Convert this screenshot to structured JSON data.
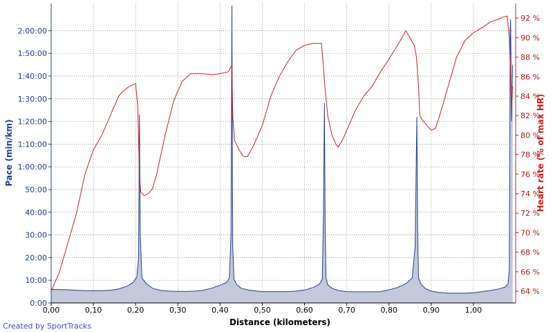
{
  "credit": "Created by SportTracks",
  "colors": {
    "pace": "#23408f",
    "pace_fill": "#c3c9da",
    "heart_rate": "#cc2020",
    "grid": "#7a7a7a",
    "credit": "#3050c0"
  },
  "chart_data": {
    "type": "area",
    "xlabel": "Distance (kilometers)",
    "ylabel_left": "Pace (min/km)",
    "ylabel_right": "Heart rate (% of max HR)",
    "xlim": [
      0,
      1.1
    ],
    "ylim_left_minutes": [
      0,
      132
    ],
    "ylim_right_percent": [
      62.8,
      93.5
    ],
    "grid": true,
    "x_ticks": [
      "0,00",
      "0,10",
      "0,20",
      "0,30",
      "0,40",
      "0,50",
      "0,60",
      "0,70",
      "0,80",
      "0,90",
      "1,00"
    ],
    "left_ticks": [
      "0:00",
      "10:00",
      "20:00",
      "30:00",
      "40:00",
      "50:00",
      "1:00:00",
      "1:10:00",
      "1:20:00",
      "1:30:00",
      "1:40:00",
      "1:50:00",
      "2:00:00"
    ],
    "right_ticks": [
      "64 %",
      "66 %",
      "68 %",
      "70 %",
      "72 %",
      "74 %",
      "76 %",
      "78 %",
      "80 %",
      "82 %",
      "84 %",
      "86 %",
      "88 %",
      "90 %",
      "92 %"
    ],
    "series": [
      {
        "name": "Pace",
        "axis": "left",
        "unit": "min/km",
        "x": [
          0.0,
          0.02,
          0.04,
          0.06,
          0.08,
          0.1,
          0.12,
          0.14,
          0.16,
          0.18,
          0.195,
          0.203,
          0.207,
          0.209,
          0.211,
          0.215,
          0.225,
          0.24,
          0.26,
          0.28,
          0.3,
          0.32,
          0.34,
          0.36,
          0.38,
          0.4,
          0.415,
          0.422,
          0.426,
          0.428,
          0.43,
          0.433,
          0.44,
          0.45,
          0.47,
          0.5,
          0.52,
          0.54,
          0.56,
          0.58,
          0.6,
          0.62,
          0.635,
          0.642,
          0.645,
          0.647,
          0.649,
          0.651,
          0.655,
          0.665,
          0.68,
          0.7,
          0.72,
          0.74,
          0.76,
          0.78,
          0.8,
          0.82,
          0.84,
          0.855,
          0.862,
          0.866,
          0.868,
          0.87,
          0.875,
          0.885,
          0.9,
          0.92,
          0.94,
          0.96,
          0.98,
          1.0,
          1.02,
          1.04,
          1.06,
          1.075,
          1.082,
          1.085,
          1.087,
          1.088,
          1.09,
          1.093
        ],
        "y": [
          6,
          5.9,
          5.8,
          5.6,
          5.4,
          5.4,
          5.4,
          5.6,
          6.2,
          7.4,
          9.2,
          11.5,
          20,
          83,
          30,
          11,
          8.5,
          6.5,
          5.5,
          5.2,
          5.1,
          5.1,
          5.2,
          5.6,
          6.5,
          7.8,
          9,
          11,
          30,
          131,
          25,
          10.5,
          8,
          6.5,
          5.6,
          5,
          5,
          5,
          5,
          5.2,
          5.7,
          6.8,
          8.2,
          10.5,
          40,
          88,
          30,
          11,
          8,
          6.5,
          5.5,
          5,
          4.9,
          4.9,
          4.9,
          5,
          5.8,
          6.8,
          8.5,
          11,
          25,
          82,
          30,
          11,
          8.5,
          6.5,
          5.2,
          4.6,
          4.3,
          4.3,
          4.3,
          4.5,
          5,
          5.5,
          6.2,
          7,
          8.5,
          15,
          120,
          125,
          80,
          105
        ]
      },
      {
        "name": "Heart rate",
        "axis": "right",
        "unit": "% of max HR",
        "x": [
          0.0,
          0.02,
          0.04,
          0.06,
          0.08,
          0.1,
          0.12,
          0.14,
          0.16,
          0.17,
          0.185,
          0.2,
          0.205,
          0.209,
          0.212,
          0.22,
          0.23,
          0.24,
          0.25,
          0.27,
          0.29,
          0.31,
          0.33,
          0.35,
          0.36,
          0.38,
          0.4,
          0.42,
          0.428,
          0.43,
          0.434,
          0.445,
          0.455,
          0.465,
          0.48,
          0.5,
          0.52,
          0.54,
          0.56,
          0.58,
          0.6,
          0.62,
          0.64,
          0.645,
          0.648,
          0.655,
          0.665,
          0.675,
          0.68,
          0.69,
          0.7,
          0.72,
          0.74,
          0.76,
          0.78,
          0.8,
          0.82,
          0.84,
          0.86,
          0.865,
          0.87,
          0.873,
          0.88,
          0.9,
          0.91,
          0.92,
          0.94,
          0.96,
          0.98,
          1.0,
          1.02,
          1.04,
          1.06,
          1.07,
          1.08,
          1.085,
          1.088,
          1.09,
          1.093
        ],
        "y": [
          64,
          66,
          69,
          72,
          76,
          78.5,
          80,
          82,
          84,
          84.5,
          85,
          85.3,
          83,
          76,
          74.2,
          73.8,
          74,
          74.5,
          76,
          80,
          83.5,
          85.5,
          86.3,
          86.3,
          86.3,
          86.2,
          86.3,
          86.5,
          87.2,
          82,
          79.5,
          78.5,
          77.8,
          77.8,
          79,
          81,
          84,
          86,
          87.5,
          88.7,
          89.2,
          89.4,
          89.4,
          87,
          85,
          82,
          80,
          79,
          78.8,
          79.5,
          80.5,
          82.5,
          84,
          85,
          86.5,
          87.8,
          89.2,
          90.7,
          89.2,
          88,
          85,
          82,
          81.5,
          80.5,
          80.7,
          82,
          85,
          88,
          89.7,
          90.5,
          91,
          91.6,
          91.9,
          92.1,
          92.2,
          90,
          86,
          82.7,
          85
        ]
      }
    ]
  }
}
